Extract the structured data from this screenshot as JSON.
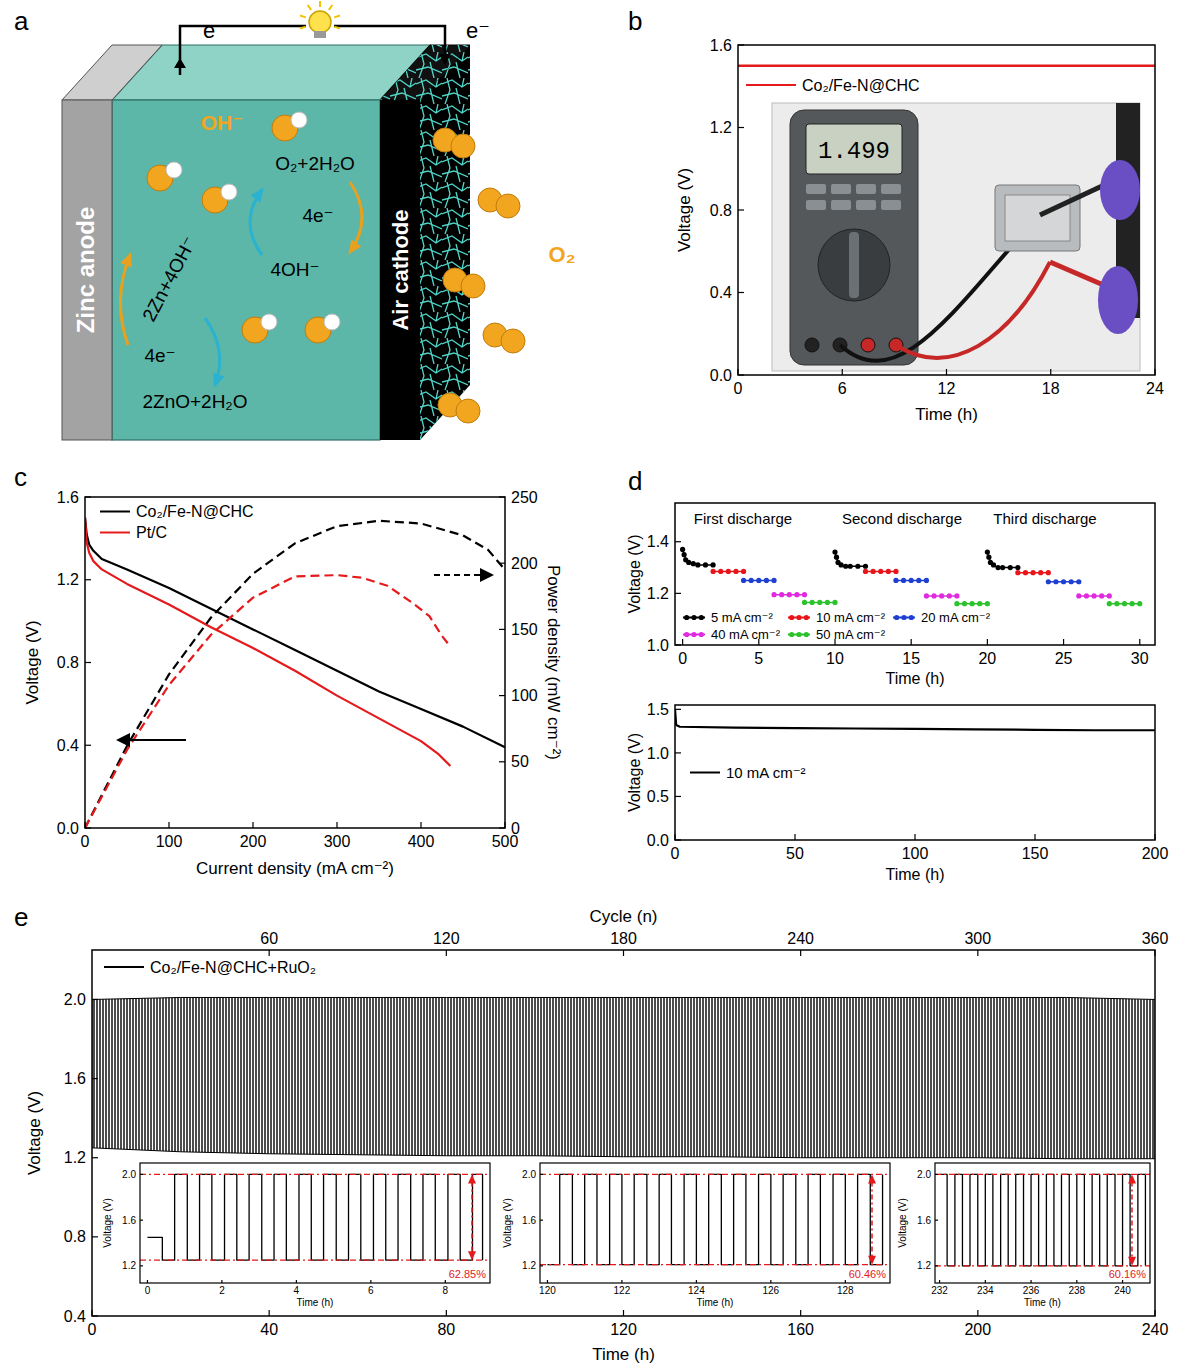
{
  "panel_letters": [
    "a",
    "b",
    "c",
    "d",
    "e"
  ],
  "diagram": {
    "labels": [
      "Zinc anode",
      "Air cathode",
      "e⁻",
      "e⁻",
      "OH⁻",
      "O₂",
      "O₂+2H₂O",
      "4e⁻",
      "4OH⁻",
      "2Zn+4OH⁻",
      "4e⁻",
      "2ZnO+2H₂O"
    ]
  },
  "chart_data": [
    {
      "type": "line",
      "xlabel": "Time (h)",
      "ylabel": "Voltage (V)",
      "xlim": [
        0,
        24
      ],
      "xticks": [
        0,
        6,
        12,
        18,
        24
      ],
      "ylim": [
        0,
        1.6
      ],
      "yticks": [
        {
          "value": 0,
          "label": "0.0"
        },
        0.4,
        0.8,
        1.2,
        1.6
      ],
      "legend": "upper left",
      "annotations": [
        "1.499"
      ],
      "series": [
        {
          "name": "Co₂/Fe-N@CHC",
          "color": "#e41a1c",
          "x": [
            0,
            4,
            8,
            12,
            16,
            20,
            24
          ],
          "values": [
            1.499,
            1.499,
            1.5,
            1.5,
            1.5,
            1.5,
            1.5
          ]
        }
      ]
    },
    {
      "type": "line",
      "xlabel": "Current density (mA cm⁻²)",
      "ylabel": "Voltage (V)",
      "y2label": "Power density (mW cm⁻²)",
      "xlim": [
        0,
        500
      ],
      "xticks": [
        0,
        100,
        200,
        300,
        400,
        500
      ],
      "ylim": [
        0,
        1.6
      ],
      "yticks": [
        {
          "value": 0,
          "label": "0.0"
        },
        0.4,
        0.8,
        1.2,
        1.6
      ],
      "y2lim": [
        0,
        250
      ],
      "y2ticks": [
        0,
        50,
        100,
        150,
        200,
        250
      ],
      "legend": "upper left",
      "series": [
        {
          "name": "Co₂/Fe-N@CHC",
          "color": "#000000",
          "line_style": "solid",
          "x": [
            0,
            2,
            5,
            10,
            20,
            50,
            100,
            150,
            200,
            250,
            300,
            350,
            400,
            450,
            500
          ],
          "values": [
            1.5,
            1.42,
            1.37,
            1.34,
            1.3,
            1.25,
            1.16,
            1.06,
            0.96,
            0.86,
            0.76,
            0.66,
            0.575,
            0.49,
            0.39
          ]
        },
        {
          "name": "Pt/C",
          "color": "#e41a1c",
          "line_style": "solid",
          "x": [
            0,
            2,
            5,
            10,
            20,
            50,
            100,
            150,
            200,
            250,
            300,
            350,
            400,
            420,
            435
          ],
          "values": [
            1.5,
            1.38,
            1.33,
            1.29,
            1.25,
            1.18,
            1.08,
            0.97,
            0.87,
            0.76,
            0.64,
            0.53,
            0.42,
            0.36,
            0.3
          ]
        },
        {
          "color": "#000000",
          "line_style": "dashed",
          "axis": "y2",
          "x": [
            0,
            50,
            100,
            150,
            200,
            250,
            300,
            350,
            400,
            450,
            480,
            500
          ],
          "values": [
            0,
            62,
            116,
            159,
            192,
            215,
            228,
            232,
            230,
            221,
            210,
            195
          ]
        },
        {
          "color": "#e41a1c",
          "line_style": "dashed",
          "axis": "y2",
          "x": [
            0,
            50,
            100,
            150,
            200,
            250,
            300,
            330,
            360,
            390,
            410,
            425,
            435
          ],
          "values": [
            0,
            59,
            108,
            146,
            174,
            190,
            191,
            189,
            183,
            170,
            160,
            145,
            137
          ]
        }
      ]
    },
    {
      "type": "line",
      "xlabel": "Time (h)",
      "ylabel": "Voltage (V)",
      "xlim": [
        -0.5,
        31
      ],
      "xticks": [
        0,
        5,
        10,
        15,
        20,
        25,
        30
      ],
      "ylim": [
        1,
        1.55
      ],
      "yticks": [
        {
          "value": 1,
          "label": "1.0"
        },
        1.2,
        1.4
      ],
      "legend": "lower left",
      "marker": "circle",
      "annotations": [
        "First discharge",
        "Second discharge",
        "Third discharge"
      ],
      "series": [
        {
          "name": "5 mA cm⁻²",
          "color": "#000000",
          "x": [
            0,
            0.1,
            0.2,
            0.4,
            0.7,
            1,
            1.5,
            2,
            null,
            10,
            10.1,
            10.2,
            10.4,
            10.7,
            11,
            11.5,
            12,
            null,
            20,
            20.1,
            20.2,
            20.4,
            20.7,
            21,
            21.5,
            22
          ],
          "values": [
            1.37,
            1.35,
            1.33,
            1.32,
            1.315,
            1.31,
            1.31,
            1.31,
            null,
            1.36,
            1.34,
            1.32,
            1.31,
            1.305,
            1.305,
            1.305,
            1.305,
            null,
            1.36,
            1.34,
            1.32,
            1.31,
            1.3,
            1.3,
            1.3,
            1.3
          ]
        },
        {
          "name": "10 mA cm⁻²",
          "color": "#e8161b",
          "x": [
            2,
            2.5,
            3,
            3.5,
            4,
            null,
            12,
            12.5,
            13,
            13.5,
            14,
            null,
            22,
            22.5,
            23,
            23.5,
            24
          ],
          "values": [
            1.285,
            1.285,
            1.285,
            1.285,
            1.285,
            null,
            1.285,
            1.285,
            1.285,
            1.285,
            1.285,
            null,
            1.28,
            1.28,
            1.28,
            1.28,
            1.28
          ]
        },
        {
          "name": "20 mA cm⁻²",
          "color": "#1f3fd1",
          "x": [
            4,
            4.5,
            5,
            5.5,
            6,
            null,
            14,
            14.5,
            15,
            15.5,
            16,
            null,
            24,
            24.5,
            25,
            25.5,
            26
          ],
          "values": [
            1.25,
            1.25,
            1.25,
            1.25,
            1.25,
            null,
            1.25,
            1.25,
            1.25,
            1.25,
            1.25,
            null,
            1.245,
            1.245,
            1.245,
            1.245,
            1.245
          ]
        },
        {
          "name": "40 mA cm⁻²",
          "color": "#e02ae0",
          "x": [
            6,
            6.5,
            7,
            7.5,
            8,
            null,
            16,
            16.5,
            17,
            17.5,
            18,
            null,
            26,
            26.5,
            27,
            27.5,
            28
          ],
          "values": [
            1.195,
            1.195,
            1.195,
            1.195,
            1.195,
            null,
            1.19,
            1.19,
            1.19,
            1.19,
            1.19,
            null,
            1.19,
            1.19,
            1.19,
            1.19,
            1.19
          ]
        },
        {
          "name": "50 mA cm⁻²",
          "color": "#2cc22c",
          "x": [
            8,
            8.5,
            9,
            9.5,
            10,
            null,
            18,
            18.5,
            19,
            19.5,
            20,
            null,
            28,
            28.5,
            29,
            29.5,
            30
          ],
          "values": [
            1.165,
            1.165,
            1.165,
            1.165,
            1.165,
            null,
            1.16,
            1.16,
            1.16,
            1.16,
            1.16,
            null,
            1.16,
            1.16,
            1.16,
            1.16,
            1.16
          ]
        }
      ]
    },
    {
      "type": "line",
      "xlabel": "Time (h)",
      "ylabel": "Voltage (V)",
      "xlim": [
        0,
        200
      ],
      "xticks": [
        0,
        50,
        100,
        150,
        200
      ],
      "ylim": [
        0,
        1.55
      ],
      "yticks": [
        {
          "value": 0,
          "label": "0.0"
        },
        0.5,
        {
          "value": 1,
          "label": "1.0"
        },
        1.5
      ],
      "legend": "center left",
      "series": [
        {
          "name": "10 mA cm⁻²",
          "color": "#000000",
          "x": [
            0,
            0.5,
            2,
            25,
            50,
            75,
            100,
            125,
            150,
            175,
            200
          ],
          "values": [
            1.5,
            1.32,
            1.3,
            1.29,
            1.285,
            1.28,
            1.275,
            1.27,
            1.265,
            1.26,
            1.26
          ]
        }
      ]
    },
    {
      "type": "area",
      "xlabel": "Time (h)",
      "ylabel": "Voltage (V)",
      "x2label": "Cycle (n)",
      "xlim": [
        0,
        240
      ],
      "xticks": [
        0,
        40,
        80,
        120,
        160,
        200,
        240
      ],
      "x2lim": [
        0,
        360
      ],
      "x2ticks": [
        60,
        120,
        180,
        240,
        300,
        360
      ],
      "ylim": [
        0.4,
        2.25
      ],
      "yticks": [
        0.4,
        0.8,
        1.2,
        1.6,
        {
          "value": 2,
          "label": "2.0"
        }
      ],
      "legend": "upper left",
      "series": [
        {
          "name": "Co₂/Fe-N@CHC+RuO₂",
          "color": "#000000",
          "x": [
            0,
            20,
            40,
            60,
            80,
            100,
            120,
            140,
            160,
            180,
            200,
            220,
            240
          ],
          "charge": [
            2.0,
            2.01,
            2.01,
            2.01,
            2.01,
            2.01,
            2.01,
            2.01,
            2.01,
            2.01,
            2.01,
            2.01,
            2.0
          ],
          "discharge": [
            1.25,
            1.23,
            1.22,
            1.215,
            1.21,
            1.21,
            1.205,
            1.205,
            1.2,
            1.2,
            1.2,
            1.195,
            1.195
          ]
        }
      ],
      "insets": [
        {
          "type": "line",
          "line_style": "step",
          "color": "#000000",
          "xlabel": "Time (h)",
          "ylabel": "Voltage (V)",
          "xlim": [
            -0.2,
            9.2
          ],
          "xticks": [
            0,
            2,
            4,
            6,
            8
          ],
          "ylim": [
            1.05,
            2.1
          ],
          "yticks": [
            1.2,
            1.6,
            {
              "value": 2,
              "label": "2.0"
            }
          ],
          "reference_lines": [
            2,
            1.25
          ],
          "annotation": "62.85%",
          "x": [
            0,
            0.4,
            0.73,
            1.07,
            1.4,
            1.73,
            2.07,
            2.4,
            2.73,
            3.07,
            3.4,
            3.73,
            4.07,
            4.4,
            4.73,
            5.07,
            5.4,
            5.73,
            6.07,
            6.4,
            6.73,
            7.07,
            7.4,
            7.73,
            8.07,
            8.4,
            8.73,
            9.0
          ],
          "values": [
            1.45,
            1.25,
            2,
            1.25,
            2,
            1.25,
            2,
            1.25,
            2,
            1.25,
            2,
            1.25,
            2,
            1.25,
            2,
            1.25,
            2,
            1.25,
            2,
            1.25,
            2,
            1.25,
            2,
            1.25,
            2,
            1.25,
            2,
            1.25
          ]
        },
        {
          "type": "line",
          "line_style": "step",
          "color": "#000000",
          "xlabel": "Time (h)",
          "ylabel": "Voltage (V)",
          "xlim": [
            119.8,
            129.2
          ],
          "xticks": [
            120,
            122,
            124,
            126,
            128
          ],
          "ylim": [
            1.05,
            2.1
          ],
          "yticks": [
            1.2,
            1.6,
            {
              "value": 2,
              "label": "2.0"
            }
          ],
          "reference_lines": [
            2,
            1.21
          ],
          "annotation": "60.46%",
          "x": [
            120,
            120.33,
            120.67,
            121,
            121.33,
            121.67,
            122,
            122.33,
            122.67,
            123,
            123.33,
            123.67,
            124,
            124.33,
            124.67,
            125,
            125.33,
            125.67,
            126,
            126.33,
            126.67,
            127,
            127.33,
            127.67,
            128,
            128.33,
            128.67,
            129
          ],
          "values": [
            1.21,
            2,
            1.21,
            2,
            1.21,
            2,
            1.21,
            2,
            1.21,
            2,
            1.21,
            2,
            1.21,
            2,
            1.21,
            2,
            1.21,
            2,
            1.21,
            2,
            1.21,
            2,
            1.21,
            2,
            1.21,
            2,
            1.21,
            2
          ]
        },
        {
          "type": "line",
          "line_style": "step",
          "color": "#000000",
          "xlabel": "Time (h)",
          "ylabel": "Voltage (V)",
          "xlim": [
            231.8,
            241.2
          ],
          "xticks": [
            232,
            234,
            236,
            238,
            240
          ],
          "ylim": [
            1.05,
            2.1
          ],
          "yticks": [
            1.2,
            1.6,
            {
              "value": 2,
              "label": "2.0"
            }
          ],
          "reference_lines": [
            2,
            1.2
          ],
          "annotation": "60.16%",
          "x": [
            232,
            232.33,
            232.67,
            233,
            233.33,
            233.67,
            234,
            234.33,
            234.67,
            235,
            235.33,
            235.67,
            236,
            236.33,
            236.67,
            237,
            237.33,
            237.67,
            238,
            238.33,
            238.67,
            239,
            239.33,
            239.67,
            240,
            240.33,
            240.67,
            241
          ],
          "values": [
            2,
            1.2,
            2,
            1.2,
            2,
            1.2,
            2,
            1.2,
            2,
            1.2,
            2,
            1.2,
            2,
            1.2,
            2,
            1.2,
            2,
            1.2,
            2,
            1.2,
            2,
            1.2,
            2,
            1.2,
            2,
            1.2,
            2,
            1.2
          ]
        }
      ]
    }
  ]
}
